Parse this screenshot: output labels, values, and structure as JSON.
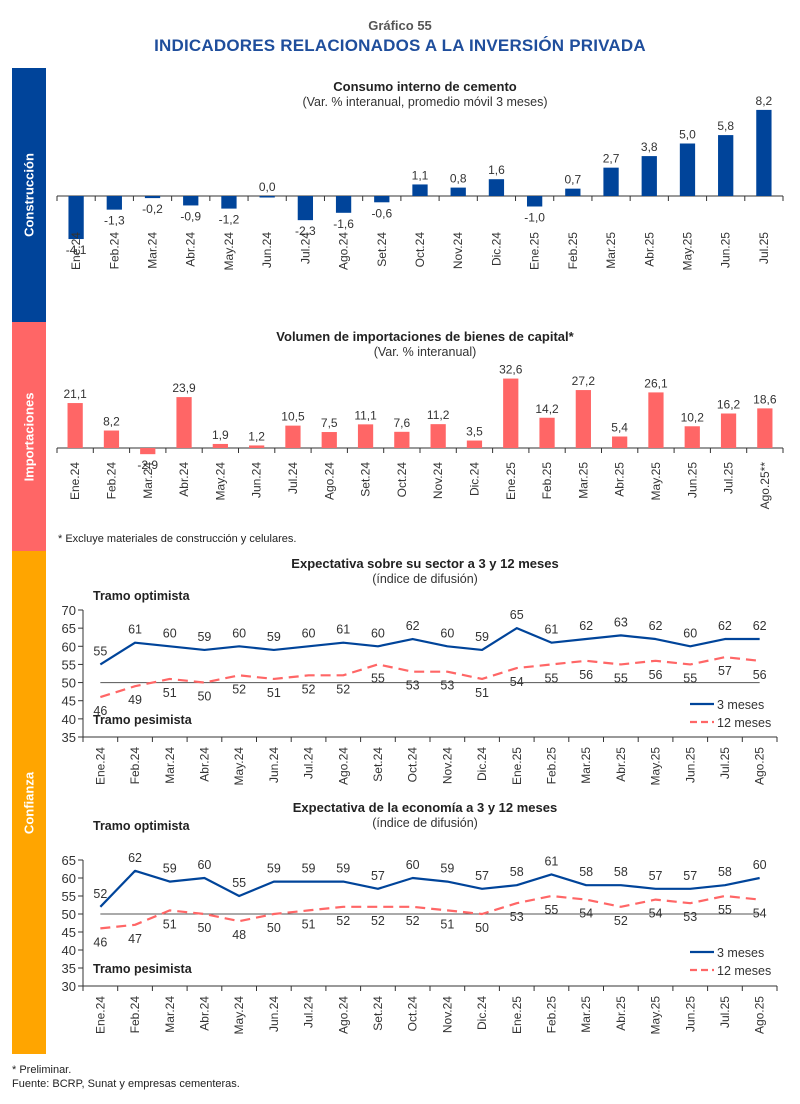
{
  "figure": {
    "number": "Gráfico 55",
    "title": "INDICADORES RELACIONADOS A LA INVERSIÓN PRIVADA"
  },
  "sections": [
    {
      "label": "Construcción",
      "color": "#00449a"
    },
    {
      "label": "Importaciones",
      "color": "#ff6666"
    },
    {
      "label": "Confianza",
      "color": "#ffa500"
    }
  ],
  "colors": {
    "blue": "#00449a",
    "red": "#ff6666",
    "orange": "#ffa500",
    "axis": "#333333"
  },
  "notes": {
    "imports_footnote": "* Excluye materiales de construcción y celulares.",
    "preliminary": "* Preliminar.",
    "source": "Fuente: BCRP, Sunat y empresas cementeras."
  },
  "chart_data": [
    {
      "type": "bar",
      "title": "Consumo interno de cemento",
      "subtitle": "(Var. % interanual, promedio móvil 3 meses)",
      "categories": [
        "Ene.24",
        "Feb.24",
        "Mar.24",
        "Abr.24",
        "May.24",
        "Jun.24",
        "Jul.24",
        "Ago.24",
        "Set.24",
        "Oct.24",
        "Nov.24",
        "Dic.24",
        "Ene.25",
        "Feb.25",
        "Mar.25",
        "Abr.25",
        "May.25",
        "Jun.25",
        "Jul.25"
      ],
      "values": [
        -4.1,
        -1.3,
        -0.2,
        -0.9,
        -1.2,
        0.0,
        -2.3,
        -1.6,
        -0.6,
        1.1,
        0.8,
        1.6,
        -1.0,
        0.7,
        2.7,
        3.8,
        5.0,
        5.8,
        8.2
      ],
      "labels": [
        "-4,1",
        "-1,3",
        "-0,2",
        "-0,9",
        "-1,2",
        "0,0",
        "-2,3",
        "-1,6",
        "-0,6",
        "1,1",
        "0,8",
        "1,6",
        "-1,0",
        "0,7",
        "2,7",
        "3,8",
        "5,0",
        "5,8",
        "8,2"
      ],
      "color": "#00449a",
      "xlabel": "",
      "ylabel": "",
      "ylim": [
        -4.5,
        8.5
      ]
    },
    {
      "type": "bar",
      "title": "Volumen de importaciones de bienes de capital*",
      "subtitle": "(Var. % interanual)",
      "categories": [
        "Ene.24",
        "Feb.24",
        "Mar.24",
        "Abr.24",
        "May.24",
        "Jun.24",
        "Jul.24",
        "Ago.24",
        "Set.24",
        "Oct.24",
        "Nov.24",
        "Dic.24",
        "Ene.25",
        "Feb.25",
        "Mar.25",
        "Abr.25",
        "May.25",
        "Jun.25",
        "Jul.25",
        "Ago.25**"
      ],
      "values": [
        21.1,
        8.2,
        -2.9,
        23.9,
        1.9,
        1.2,
        10.5,
        7.5,
        11.1,
        7.6,
        11.2,
        3.5,
        32.6,
        14.2,
        27.2,
        5.4,
        26.1,
        10.2,
        16.2,
        18.6
      ],
      "labels": [
        "21,1",
        "8,2",
        "-2,9",
        "23,9",
        "1,9",
        "1,2",
        "10,5",
        "7,5",
        "11,1",
        "7,6",
        "11,2",
        "3,5",
        "32,6",
        "14,2",
        "27,2",
        "5,4",
        "26,1",
        "10,2",
        "16,2",
        "18,6"
      ],
      "color": "#ff6666",
      "xlabel": "",
      "ylabel": "",
      "ylim": [
        -5,
        35
      ]
    },
    {
      "type": "line",
      "title": "Expectativa sobre su sector a 3 y 12 meses",
      "subtitle": "(índice de difusión)",
      "categories": [
        "Ene.24",
        "Feb.24",
        "Mar.24",
        "Abr.24",
        "May.24",
        "Jun.24",
        "Jul.24",
        "Ago.24",
        "Set.24",
        "Oct.24",
        "Nov.24",
        "Dic.24",
        "Ene.25",
        "Feb.25",
        "Mar.25",
        "Abr.25",
        "May.25",
        "Jun.25",
        "Jul.25",
        "Ago.25"
      ],
      "series": [
        {
          "name": "3 meses",
          "style": "solid",
          "color": "#00449a",
          "values": [
            55,
            61,
            60,
            59,
            60,
            59,
            60,
            61,
            60,
            62,
            60,
            59,
            65,
            61,
            62,
            63,
            62,
            60,
            62,
            62
          ]
        },
        {
          "name": "12 meses",
          "style": "dashed",
          "color": "#ff6666",
          "values": [
            46,
            49,
            51,
            50,
            52,
            51,
            52,
            52,
            55,
            53,
            53,
            51,
            54,
            55,
            56,
            55,
            56,
            55,
            57,
            56
          ]
        }
      ],
      "yticks": [
        35,
        40,
        45,
        50,
        55,
        60,
        65,
        70
      ],
      "ylim": [
        35,
        70
      ],
      "reference_line": 50,
      "annotations": [
        "Tramo optimista",
        "Tramo pesimista"
      ],
      "legend": "bottom-right",
      "grid": false
    },
    {
      "type": "line",
      "title": "Expectativa de la economía a 3 y 12 meses",
      "subtitle": "(índice de difusión)",
      "categories": [
        "Ene.24",
        "Feb.24",
        "Mar.24",
        "Abr.24",
        "May.24",
        "Jun.24",
        "Jul.24",
        "Ago.24",
        "Set.24",
        "Oct.24",
        "Nov.24",
        "Dic.24",
        "Ene.25",
        "Feb.25",
        "Mar.25",
        "Abr.25",
        "May.25",
        "Jun.25",
        "Jul.25",
        "Ago.25"
      ],
      "series": [
        {
          "name": "3 meses",
          "style": "solid",
          "color": "#00449a",
          "values": [
            52,
            62,
            59,
            60,
            55,
            59,
            59,
            59,
            57,
            60,
            59,
            57,
            58,
            61,
            58,
            58,
            57,
            57,
            58,
            60
          ]
        },
        {
          "name": "12 meses",
          "style": "dashed",
          "color": "#ff6666",
          "values": [
            46,
            47,
            51,
            50,
            48,
            50,
            51,
            52,
            52,
            52,
            51,
            50,
            53,
            55,
            54,
            52,
            54,
            53,
            55,
            54
          ]
        }
      ],
      "yticks": [
        30,
        35,
        40,
        45,
        50,
        55,
        60,
        65
      ],
      "ylim": [
        30,
        65
      ],
      "reference_line": 50,
      "annotations": [
        "Tramo optimista",
        "Tramo pesimista"
      ],
      "legend": "bottom-right",
      "grid": false
    }
  ]
}
